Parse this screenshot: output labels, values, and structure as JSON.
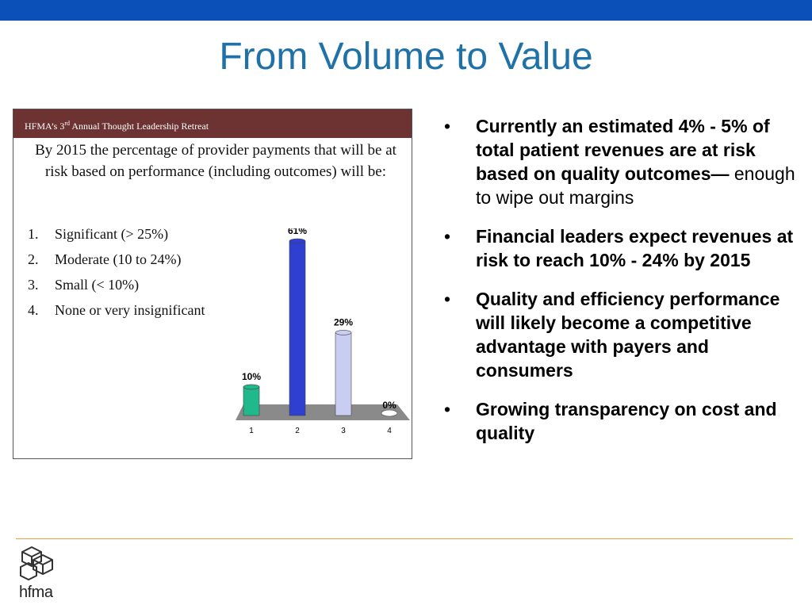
{
  "slide": {
    "title": "From Volume to Value",
    "accent_color": "#0b4fb8",
    "title_color": "#1f72a8",
    "divider_color": "#e5a23a"
  },
  "poll_panel": {
    "header_prefix": "HFMA’s 3",
    "header_sup": "rd",
    "header_suffix": " Annual Thought Leadership Retreat",
    "header_color": "#6d3333",
    "question": "By 2015 the percentage of provider payments that will be at risk based on performance  (including outcomes) will be:",
    "options": [
      {
        "num": "1.",
        "label": "Significant (> 25%)"
      },
      {
        "num": "2.",
        "label": "Moderate (10 to 24%)"
      },
      {
        "num": "3.",
        "label": "Small (< 10%)"
      },
      {
        "num": "4.",
        "label": "None or very insignificant"
      }
    ]
  },
  "chart_data": {
    "type": "bar",
    "categories": [
      "1",
      "2",
      "3",
      "4"
    ],
    "values": [
      10,
      61,
      29,
      0
    ],
    "data_labels": [
      "10%",
      "61%",
      "29%",
      "0%"
    ],
    "colors": [
      "#1fb98b",
      "#2f3fd0",
      "#c9cdf2",
      "#ffffff"
    ],
    "ylim": [
      0,
      61
    ]
  },
  "bullets": [
    {
      "bold": "Currently an estimated 4% - 5% of total patient revenues are at risk based on quality outcomes—",
      "normal": " enough to wipe out margins"
    },
    {
      "bold": "Financial leaders expect revenues at risk to reach 10% - 24% by 2015",
      "normal": ""
    },
    {
      "bold": "Quality and efficiency performance will likely become a competitive advantage with payers and consumers",
      "normal": ""
    },
    {
      "bold": "Growing transparency on cost and quality",
      "normal": ""
    }
  ],
  "bullet_glyph": "•",
  "logo": {
    "text": "hfma",
    "icon": "hfma-cubes-logo-icon"
  }
}
